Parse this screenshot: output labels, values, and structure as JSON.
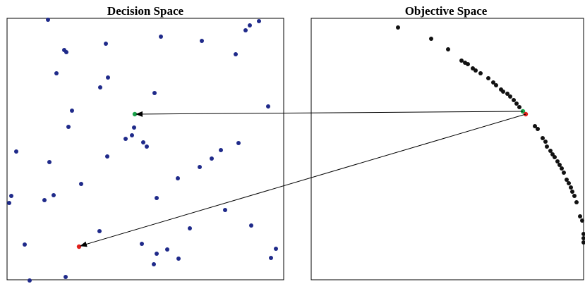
{
  "panels": {
    "decision": {
      "title": "Decision Space"
    },
    "objective": {
      "title": "Objective Space"
    }
  },
  "colors": {
    "decision_points": "#1f2a8a",
    "objective_points": "#111111",
    "highlight_green": "#1aa34a",
    "highlight_red": "#e0201b",
    "frame": "#000000",
    "arrow": "#000000"
  }
}
